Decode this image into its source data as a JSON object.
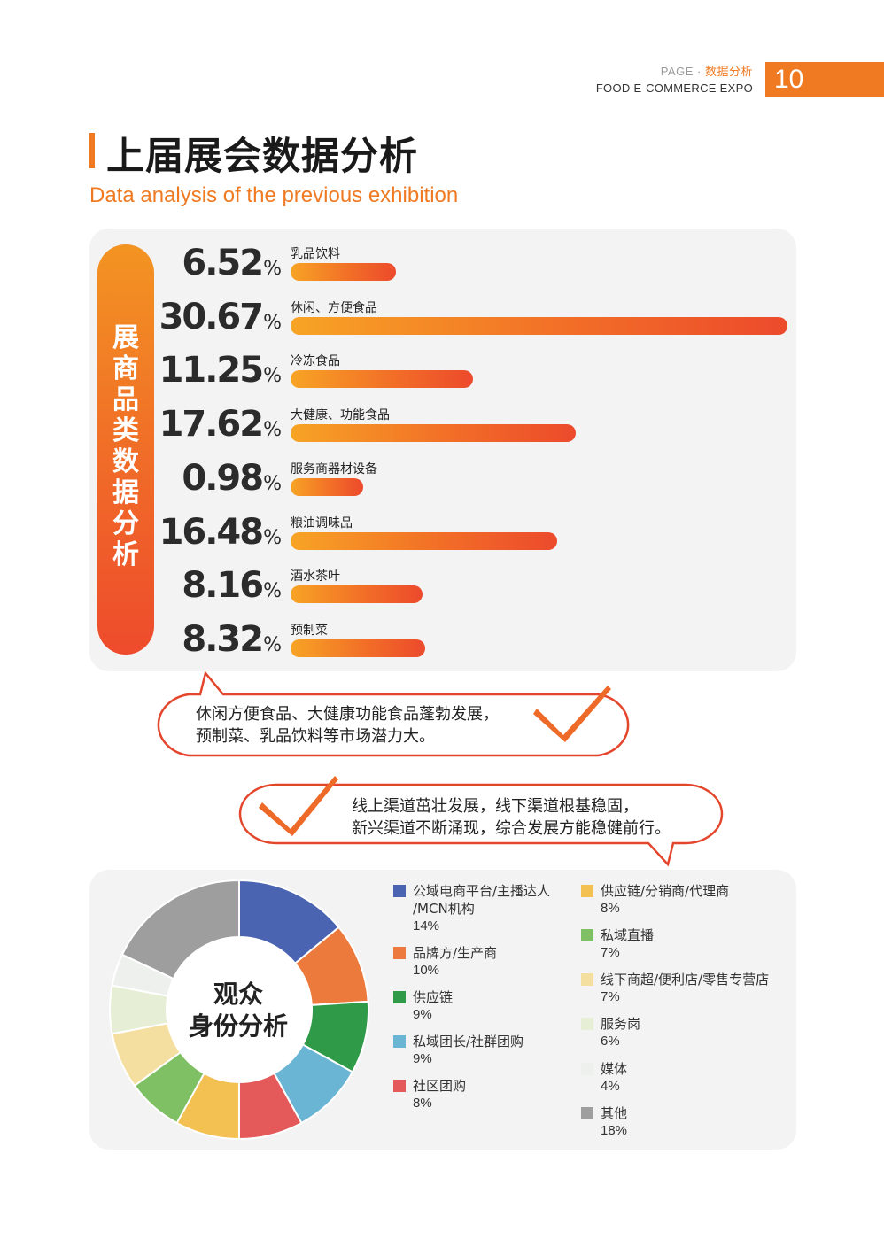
{
  "header": {
    "page_label": "PAGE",
    "dot": "·",
    "section": "数据分析",
    "expo_name": "FOOD E-COMMERCE EXPO",
    "page_number": "10",
    "accent": "#ef7a22"
  },
  "title": "上届展会数据分析",
  "subtitle": "Data analysis of the previous exhibition",
  "chart_data": [
    {
      "type": "bar",
      "title": "展商品类数据分析",
      "orientation": "horizontal",
      "categories": [
        "乳品饮料",
        "休闲、方便食品",
        "冷冻食品",
        "大健康、功能食品",
        "服务商器材设备",
        "粮油调味品",
        "酒水茶叶",
        "预制菜"
      ],
      "values": [
        6.52,
        30.67,
        11.25,
        17.62,
        0.98,
        16.48,
        8.16,
        8.32
      ],
      "unit": "%",
      "value_labels": [
        "6.52",
        "30.67",
        "11.25",
        "17.62",
        "0.98",
        "16.48",
        "8.16",
        "8.32"
      ]
    },
    {
      "type": "pie",
      "donut": true,
      "title": "观众身份分析",
      "labels": [
        "公域电商平台/主播达人/MCN机构",
        "品牌方/生产商",
        "供应链",
        "私域团长/社群团购",
        "社区团购",
        "供应链/分销商/代理商",
        "私域直播",
        "线下商超/便利店/零售专营店",
        "服务岗",
        "媒体",
        "其他"
      ],
      "values": [
        14,
        10,
        9,
        9,
        8,
        8,
        7,
        7,
        6,
        4,
        18
      ],
      "unit": "%",
      "colors": [
        "#4a64b2",
        "#ec7a3c",
        "#2f9a48",
        "#6ab4d4",
        "#e45a5a",
        "#f2c151",
        "#7ec063",
        "#f5dfa0",
        "#e6efd6",
        "#eef0ee",
        "#9e9e9e"
      ]
    }
  ],
  "bar_labels": {
    "title_chars": [
      "展",
      "商",
      "品",
      "类",
      "数",
      "据",
      "分",
      "析"
    ],
    "percent_sign": "%"
  },
  "donut_labels": {
    "line1": "观众",
    "line2": "身份分析"
  },
  "legend_left": [
    {
      "name": "公域电商平台/主播达人",
      "name2": "/MCN机构",
      "value": "14%"
    },
    {
      "name": "品牌方/生产商",
      "value": "10%"
    },
    {
      "name": "供应链",
      "value": "9%"
    },
    {
      "name": "私域团长/社群团购",
      "value": "9%"
    },
    {
      "name": "社区团购",
      "value": "8%"
    }
  ],
  "legend_right": [
    {
      "name": "供应链/分销商/代理商",
      "value": "8%"
    },
    {
      "name": "私域直播",
      "value": "7%"
    },
    {
      "name": "线下商超/便利店/零售专营店",
      "value": "7%"
    },
    {
      "name": "服务岗",
      "value": "6%"
    },
    {
      "name": "媒体",
      "value": "4%"
    },
    {
      "name": "其他",
      "value": "18%"
    }
  ],
  "callouts": {
    "bubble1": {
      "line1": "休闲方便食品、大健康功能食品蓬勃发展，",
      "line2": "预制菜、乳品饮料等市场潜力大。"
    },
    "bubble2": {
      "line1": "线上渠道茁壮发展，线下渠道根基稳固，",
      "line2": "新兴渠道不断涌现，综合发展方能稳健前行。"
    }
  }
}
